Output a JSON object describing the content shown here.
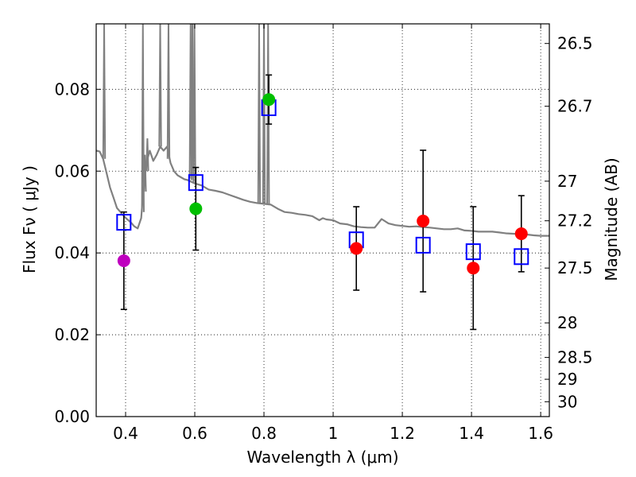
{
  "chart_data": {
    "type": "scatter",
    "title": "",
    "xlabel": "Wavelength  λ (μm)",
    "ylabel_left": "Flux  Fν  ( μJy )",
    "ylabel_right": "Magnitude (AB)",
    "xlim": [
      0.315,
      1.625
    ],
    "ylim": [
      0.0,
      0.096
    ],
    "grid": true,
    "x_ticks": [
      {
        "value": 0.4,
        "label": "0.4"
      },
      {
        "value": 0.6,
        "label": "0.6"
      },
      {
        "value": 0.8,
        "label": "0.8"
      },
      {
        "value": 1.0,
        "label": "1"
      },
      {
        "value": 1.2,
        "label": "1.2"
      },
      {
        "value": 1.4,
        "label": "1.4"
      },
      {
        "value": 1.6,
        "label": "1.6"
      }
    ],
    "y_ticks": [
      {
        "value": 0.0,
        "label": "0.00"
      },
      {
        "value": 0.02,
        "label": "0.02"
      },
      {
        "value": 0.04,
        "label": "0.04"
      },
      {
        "value": 0.06,
        "label": "0.06"
      },
      {
        "value": 0.08,
        "label": "0.08"
      }
    ],
    "right_ticks": [
      {
        "mag": 26.5,
        "label": "26.5"
      },
      {
        "mag": 26.7,
        "label": "26.7"
      },
      {
        "mag": 27.0,
        "label": "27"
      },
      {
        "mag": 27.2,
        "label": "27.2"
      },
      {
        "mag": 27.5,
        "label": "27.5"
      },
      {
        "mag": 28.0,
        "label": "28"
      },
      {
        "mag": 28.5,
        "label": "28.5"
      },
      {
        "mag": 29.0,
        "label": "29"
      },
      {
        "mag": 30.0,
        "label": "30"
      }
    ],
    "observed": [
      {
        "x": 0.395,
        "y": 0.0381,
        "err": 0.0119,
        "color": "#bf00bf"
      },
      {
        "x": 0.603,
        "y": 0.0508,
        "err": 0.0101,
        "color": "#00bf00"
      },
      {
        "x": 0.814,
        "y": 0.0775,
        "err": 0.006,
        "color": "#00bf00"
      },
      {
        "x": 1.067,
        "y": 0.0411,
        "err": 0.0102,
        "color": "#ff0000"
      },
      {
        "x": 1.26,
        "y": 0.0478,
        "err": 0.0173,
        "color": "#ff0000"
      },
      {
        "x": 1.405,
        "y": 0.0363,
        "err": 0.015,
        "color": "#ff0000"
      },
      {
        "x": 1.544,
        "y": 0.0447,
        "err": 0.0093,
        "color": "#ff0000"
      }
    ],
    "model_points": [
      {
        "x": 0.395,
        "y": 0.0475
      },
      {
        "x": 0.603,
        "y": 0.0572
      },
      {
        "x": 0.814,
        "y": 0.0755
      },
      {
        "x": 1.067,
        "y": 0.0432
      },
      {
        "x": 1.26,
        "y": 0.0419
      },
      {
        "x": 1.405,
        "y": 0.0403
      },
      {
        "x": 1.544,
        "y": 0.0391
      }
    ],
    "sed_spectrum": [
      [
        0.315,
        0.065
      ],
      [
        0.325,
        0.0648
      ],
      [
        0.335,
        0.063
      ],
      [
        0.345,
        0.0595
      ],
      [
        0.355,
        0.056
      ],
      [
        0.365,
        0.0535
      ],
      [
        0.375,
        0.051
      ],
      [
        0.385,
        0.05
      ],
      [
        0.395,
        0.049
      ],
      [
        0.405,
        0.0482
      ],
      [
        0.415,
        0.0475
      ],
      [
        0.425,
        0.0465
      ],
      [
        0.435,
        0.046
      ],
      [
        0.445,
        0.0485
      ],
      [
        0.452,
        0.056
      ],
      [
        0.46,
        0.062
      ],
      [
        0.47,
        0.065
      ],
      [
        0.48,
        0.0625
      ],
      [
        0.49,
        0.064
      ],
      [
        0.5,
        0.066
      ],
      [
        0.51,
        0.065
      ],
      [
        0.52,
        0.066
      ],
      [
        0.53,
        0.062
      ],
      [
        0.54,
        0.06
      ],
      [
        0.55,
        0.059
      ],
      [
        0.56,
        0.0585
      ],
      [
        0.57,
        0.058
      ],
      [
        0.58,
        0.0578
      ],
      [
        0.6,
        0.057
      ],
      [
        0.62,
        0.0565
      ],
      [
        0.64,
        0.0555
      ],
      [
        0.66,
        0.0552
      ],
      [
        0.68,
        0.0548
      ],
      [
        0.7,
        0.0542
      ],
      [
        0.72,
        0.0536
      ],
      [
        0.74,
        0.053
      ],
      [
        0.76,
        0.0525
      ],
      [
        0.78,
        0.0522
      ],
      [
        0.8,
        0.052
      ],
      [
        0.82,
        0.0518
      ],
      [
        0.84,
        0.0508
      ],
      [
        0.86,
        0.05
      ],
      [
        0.88,
        0.0498
      ],
      [
        0.9,
        0.0495
      ],
      [
        0.92,
        0.0493
      ],
      [
        0.94,
        0.049
      ],
      [
        0.96,
        0.048
      ],
      [
        0.97,
        0.0485
      ],
      [
        0.98,
        0.0482
      ],
      [
        1.0,
        0.048
      ],
      [
        1.02,
        0.0472
      ],
      [
        1.04,
        0.047
      ],
      [
        1.06,
        0.0465
      ],
      [
        1.08,
        0.0463
      ],
      [
        1.1,
        0.0462
      ],
      [
        1.12,
        0.0462
      ],
      [
        1.14,
        0.0483
      ],
      [
        1.16,
        0.0472
      ],
      [
        1.18,
        0.0468
      ],
      [
        1.2,
        0.0466
      ],
      [
        1.22,
        0.0464
      ],
      [
        1.24,
        0.0465
      ],
      [
        1.26,
        0.0463
      ],
      [
        1.28,
        0.0462
      ],
      [
        1.3,
        0.046
      ],
      [
        1.32,
        0.0458
      ],
      [
        1.34,
        0.0458
      ],
      [
        1.36,
        0.046
      ],
      [
        1.38,
        0.0455
      ],
      [
        1.4,
        0.0454
      ],
      [
        1.42,
        0.0452
      ],
      [
        1.44,
        0.0452
      ],
      [
        1.46,
        0.0452
      ],
      [
        1.48,
        0.045
      ],
      [
        1.5,
        0.0448
      ],
      [
        1.52,
        0.0447
      ],
      [
        1.54,
        0.0446
      ],
      [
        1.56,
        0.0445
      ],
      [
        1.58,
        0.0443
      ],
      [
        1.6,
        0.0442
      ],
      [
        1.625,
        0.0442
      ]
    ],
    "emission_spikes": [
      {
        "x": 0.338,
        "peak": 0.096,
        "base": 0.063
      },
      {
        "x": 0.45,
        "peak": 0.096,
        "base": 0.05
      },
      {
        "x": 0.456,
        "peak": 0.064,
        "base": 0.055
      },
      {
        "x": 0.463,
        "peak": 0.068,
        "base": 0.06
      },
      {
        "x": 0.5,
        "peak": 0.096,
        "base": 0.066
      },
      {
        "x": 0.524,
        "peak": 0.096,
        "base": 0.063
      },
      {
        "x": 0.588,
        "peak": 0.096,
        "base": 0.0582
      },
      {
        "x": 0.593,
        "peak": 0.096,
        "base": 0.0578
      },
      {
        "x": 0.599,
        "peak": 0.096,
        "base": 0.0572
      },
      {
        "x": 0.786,
        "peak": 0.096,
        "base": 0.0522
      },
      {
        "x": 0.8,
        "peak": 0.096,
        "base": 0.052
      },
      {
        "x": 0.812,
        "peak": 0.096,
        "base": 0.0518
      }
    ]
  }
}
